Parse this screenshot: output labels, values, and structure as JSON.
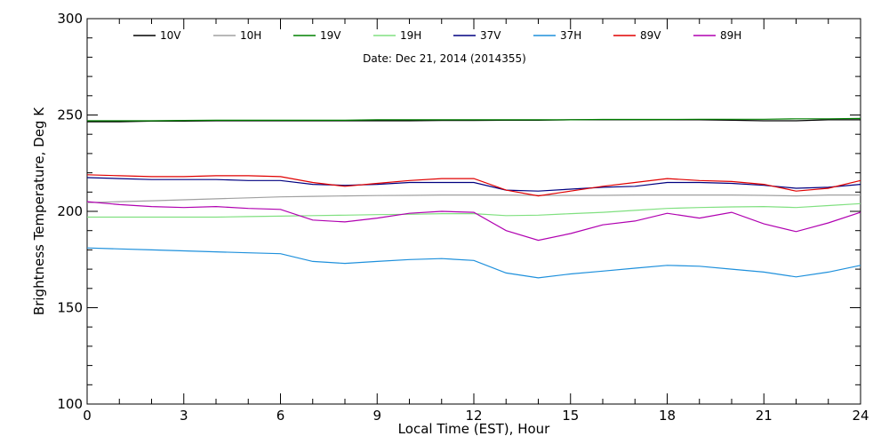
{
  "chart_data": {
    "type": "line",
    "title": "",
    "subtitle": "Date: Dec 21, 2014 (2014355)",
    "xlabel": "Local Time (EST), Hour",
    "ylabel": "Brightness Temperature, Deg K",
    "xlim": [
      0,
      24
    ],
    "ylim": [
      100,
      300
    ],
    "xticks": [
      0,
      3,
      6,
      9,
      12,
      15,
      18,
      21,
      24
    ],
    "yticks": [
      100,
      150,
      200,
      250,
      300
    ],
    "grid": false,
    "legend": "top",
    "series": [
      {
        "name": "10V",
        "color": "#000000",
        "x": [
          0,
          1,
          2,
          3,
          4,
          5,
          6,
          7,
          8,
          9,
          10,
          11,
          12,
          13,
          14,
          15,
          16,
          17,
          18,
          19,
          20,
          21,
          22,
          23,
          24
        ],
        "values": [
          246.5,
          246.5,
          246.8,
          246.8,
          247.0,
          247.0,
          247.0,
          247.0,
          247.0,
          247.0,
          247.0,
          247.2,
          247.2,
          247.3,
          247.3,
          247.5,
          247.5,
          247.5,
          247.5,
          247.5,
          247.3,
          247.0,
          247.0,
          247.5,
          247.5
        ]
      },
      {
        "name": "10H",
        "color": "#a0a0a0",
        "x": [
          0,
          1,
          2,
          3,
          4,
          5,
          6,
          7,
          8,
          9,
          10,
          11,
          12,
          13,
          14,
          15,
          16,
          17,
          18,
          19,
          20,
          21,
          22,
          23,
          24
        ],
        "values": [
          204.5,
          205.0,
          205.5,
          206.0,
          206.5,
          207.0,
          207.5,
          207.8,
          208.0,
          208.2,
          208.3,
          208.5,
          208.5,
          208.5,
          208.3,
          208.3,
          208.3,
          208.5,
          208.5,
          208.5,
          208.5,
          208.3,
          208.0,
          208.5,
          208.5
        ]
      },
      {
        "name": "19V",
        "color": "#008000",
        "x": [
          0,
          1,
          2,
          3,
          4,
          5,
          6,
          7,
          8,
          9,
          10,
          11,
          12,
          13,
          14,
          15,
          16,
          17,
          18,
          19,
          20,
          21,
          22,
          23,
          24
        ],
        "values": [
          247.0,
          247.0,
          247.0,
          247.2,
          247.3,
          247.3,
          247.3,
          247.3,
          247.3,
          247.5,
          247.5,
          247.5,
          247.5,
          247.5,
          247.5,
          247.5,
          247.7,
          247.7,
          247.7,
          247.8,
          247.8,
          247.8,
          248.0,
          248.0,
          248.2
        ]
      },
      {
        "name": "19H",
        "color": "#80e080",
        "x": [
          0,
          1,
          2,
          3,
          4,
          5,
          6,
          7,
          8,
          9,
          10,
          11,
          12,
          13,
          14,
          15,
          16,
          17,
          18,
          19,
          20,
          21,
          22,
          23,
          24
        ],
        "values": [
          197.0,
          197.0,
          197.0,
          197.0,
          197.0,
          197.3,
          197.5,
          197.8,
          198.0,
          198.3,
          198.5,
          198.8,
          198.8,
          197.8,
          198.0,
          198.8,
          199.5,
          200.5,
          201.5,
          202.0,
          202.3,
          202.5,
          202.0,
          203.0,
          204.0
        ]
      },
      {
        "name": "37V",
        "color": "#000080",
        "x": [
          0,
          1,
          2,
          3,
          4,
          5,
          6,
          7,
          8,
          9,
          10,
          11,
          12,
          13,
          14,
          15,
          16,
          17,
          18,
          19,
          20,
          21,
          22,
          23,
          24
        ],
        "values": [
          217.5,
          217.0,
          216.5,
          216.5,
          216.5,
          216.0,
          216.0,
          214.0,
          213.5,
          214.0,
          215.0,
          215.0,
          215.0,
          211.0,
          210.5,
          211.5,
          212.5,
          213.0,
          215.0,
          215.0,
          214.5,
          213.5,
          212.0,
          212.5,
          214.0
        ]
      },
      {
        "name": "37H",
        "color": "#1e90dc",
        "x": [
          0,
          1,
          2,
          3,
          4,
          5,
          6,
          7,
          8,
          9,
          10,
          11,
          12,
          13,
          14,
          15,
          16,
          17,
          18,
          19,
          20,
          21,
          22,
          23,
          24
        ],
        "values": [
          181.0,
          180.5,
          180.0,
          179.5,
          179.0,
          178.5,
          178.0,
          174.0,
          173.0,
          174.0,
          175.0,
          175.5,
          174.5,
          168.0,
          165.5,
          167.5,
          169.0,
          170.5,
          172.0,
          171.5,
          170.0,
          168.5,
          166.0,
          168.5,
          172.0
        ]
      },
      {
        "name": "89V",
        "color": "#e00000",
        "x": [
          0,
          1,
          2,
          3,
          4,
          5,
          6,
          7,
          8,
          9,
          10,
          11,
          12,
          13,
          14,
          15,
          16,
          17,
          18,
          19,
          20,
          21,
          22,
          23,
          24
        ],
        "values": [
          219.0,
          218.5,
          218.0,
          218.0,
          218.5,
          218.5,
          218.0,
          215.0,
          213.0,
          214.5,
          216.0,
          217.0,
          217.0,
          211.0,
          208.0,
          210.5,
          213.0,
          215.0,
          217.0,
          216.0,
          215.5,
          214.0,
          210.5,
          212.0,
          216.0
        ]
      },
      {
        "name": "89H",
        "color": "#b000b0",
        "x": [
          0,
          1,
          2,
          3,
          4,
          5,
          6,
          7,
          8,
          9,
          10,
          11,
          12,
          13,
          14,
          15,
          16,
          17,
          18,
          19,
          20,
          21,
          22,
          23,
          24
        ],
        "values": [
          205.0,
          203.5,
          202.5,
          202.0,
          202.5,
          201.5,
          201.0,
          195.5,
          194.5,
          196.5,
          199.0,
          200.0,
          199.5,
          190.0,
          185.0,
          188.5,
          193.0,
          195.0,
          199.0,
          196.5,
          199.5,
          193.5,
          189.5,
          194.0,
          199.5
        ]
      }
    ]
  }
}
